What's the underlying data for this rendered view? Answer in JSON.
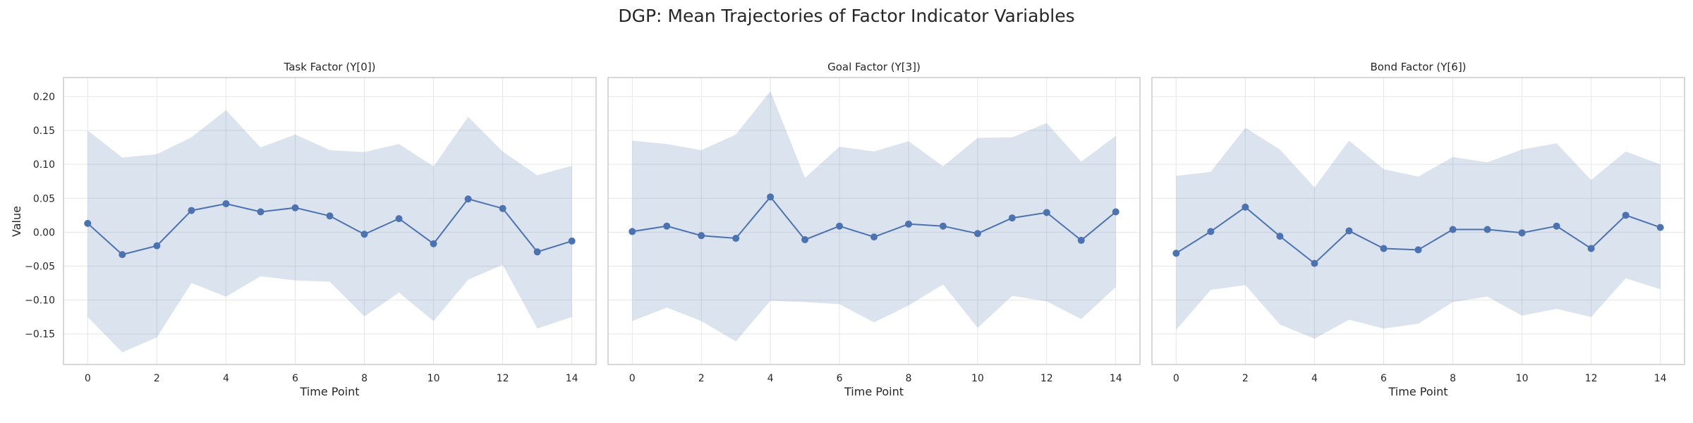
{
  "figure": {
    "suptitle": "DGP: Mean Trajectories of Factor Indicator Variables"
  },
  "chart_data": [
    {
      "type": "line",
      "title": "Task Factor (Y[0])",
      "xlabel": "Time Point",
      "ylabel": "Value",
      "x": [
        0,
        1,
        2,
        3,
        4,
        5,
        6,
        7,
        8,
        9,
        10,
        11,
        12,
        13,
        14
      ],
      "xticks": [
        0,
        2,
        4,
        6,
        8,
        10,
        12,
        14
      ],
      "yticks": [
        -0.15,
        -0.1,
        -0.05,
        0.0,
        0.05,
        0.1,
        0.15,
        0.2
      ],
      "ytick_labels": [
        "−0.15",
        "−0.10",
        "−0.05",
        "0.00",
        "0.05",
        "0.10",
        "0.15",
        "0.20"
      ],
      "ylim": [
        -0.195,
        0.228
      ],
      "xlim": [
        -0.7,
        14.7
      ],
      "grid": true,
      "series": [
        {
          "values": [
            0.013,
            -0.033,
            -0.02,
            0.032,
            0.042,
            0.03,
            0.036,
            0.024,
            -0.003,
            0.02,
            -0.017,
            0.049,
            0.035,
            -0.029,
            -0.013
          ],
          "upper": [
            0.15,
            0.11,
            0.115,
            0.14,
            0.18,
            0.125,
            0.144,
            0.121,
            0.118,
            0.13,
            0.097,
            0.17,
            0.119,
            0.084,
            0.098
          ],
          "lower": [
            -0.125,
            -0.177,
            -0.155,
            -0.075,
            -0.095,
            -0.065,
            -0.071,
            -0.073,
            -0.124,
            -0.089,
            -0.131,
            -0.07,
            -0.048,
            -0.142,
            -0.125
          ]
        }
      ]
    },
    {
      "type": "line",
      "title": "Goal Factor (Y[3])",
      "xlabel": "Time Point",
      "x": [
        0,
        1,
        2,
        3,
        4,
        5,
        6,
        7,
        8,
        9,
        10,
        11,
        12,
        13,
        14
      ],
      "xticks": [
        0,
        2,
        4,
        6,
        8,
        10,
        12,
        14
      ],
      "ylim": [
        -0.195,
        0.228
      ],
      "xlim": [
        -0.7,
        14.7
      ],
      "grid": true,
      "series": [
        {
          "values": [
            0.001,
            0.009,
            -0.005,
            -0.009,
            0.052,
            -0.011,
            0.009,
            -0.007,
            0.012,
            0.009,
            -0.002,
            0.021,
            0.029,
            -0.012,
            0.03
          ],
          "upper": [
            0.135,
            0.13,
            0.121,
            0.144,
            0.208,
            0.08,
            0.126,
            0.119,
            0.134,
            0.097,
            0.139,
            0.14,
            0.161,
            0.104,
            0.142
          ],
          "lower": [
            -0.131,
            -0.111,
            -0.131,
            -0.161,
            -0.101,
            -0.103,
            -0.106,
            -0.133,
            -0.108,
            -0.077,
            -0.141,
            -0.094,
            -0.102,
            -0.128,
            -0.081
          ]
        }
      ]
    },
    {
      "type": "line",
      "title": "Bond Factor (Y[6])",
      "xlabel": "Time Point",
      "x": [
        0,
        1,
        2,
        3,
        4,
        5,
        6,
        7,
        8,
        9,
        10,
        11,
        12,
        13,
        14
      ],
      "xticks": [
        0,
        2,
        4,
        6,
        8,
        10,
        12,
        14
      ],
      "ylim": [
        -0.195,
        0.228
      ],
      "xlim": [
        -0.7,
        14.7
      ],
      "grid": true,
      "series": [
        {
          "values": [
            -0.031,
            0.001,
            0.037,
            -0.006,
            -0.046,
            0.002,
            -0.024,
            -0.026,
            0.004,
            0.004,
            -0.001,
            0.009,
            -0.024,
            0.025,
            0.007
          ],
          "upper": [
            0.083,
            0.089,
            0.154,
            0.122,
            0.066,
            0.135,
            0.093,
            0.082,
            0.111,
            0.103,
            0.122,
            0.131,
            0.077,
            0.119,
            0.1
          ],
          "lower": [
            -0.144,
            -0.085,
            -0.078,
            -0.136,
            -0.157,
            -0.129,
            -0.142,
            -0.135,
            -0.103,
            -0.095,
            -0.123,
            -0.113,
            -0.125,
            -0.068,
            -0.084
          ]
        }
      ]
    }
  ],
  "colors": {
    "series": "#4c72b0",
    "grid": "#e6e6e6",
    "frame": "#cccccc",
    "text": "#262626"
  }
}
